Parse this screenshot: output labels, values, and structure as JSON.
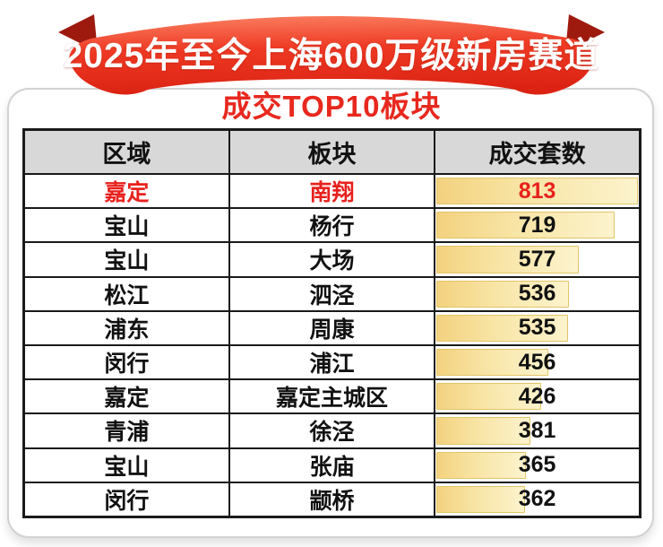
{
  "banner": {
    "title": "2025年至今上海600万级新房赛道",
    "ribbon_gradient_top": "#fb8263",
    "ribbon_gradient_bottom": "#dc2313",
    "fold_color": "#9e1a0e",
    "text_color": "#ffffff"
  },
  "subtitle": {
    "text": "成交TOP10板块",
    "color": "#e8281e"
  },
  "table": {
    "columns": [
      "区域",
      "板块",
      "成交套数"
    ],
    "header_bg": "#d8d8d8",
    "border_color": "#1a1a1a",
    "highlight_text_color": "#e8211d",
    "bar_gradient_left": "#f3d27f",
    "bar_gradient_right": "#fcf3cd",
    "bar_border_color": "#e3c468",
    "rows": [
      {
        "region": "嘉定",
        "plate": "南翔",
        "count": "813",
        "highlight": true
      },
      {
        "region": "宝山",
        "plate": "杨行",
        "count": "719",
        "highlight": false
      },
      {
        "region": "宝山",
        "plate": "大场",
        "count": "577",
        "highlight": false
      },
      {
        "region": "松江",
        "plate": "泗泾",
        "count": "536",
        "highlight": false
      },
      {
        "region": "浦东",
        "plate": "周康",
        "count": "535",
        "highlight": false
      },
      {
        "region": "闵行",
        "plate": "浦江",
        "count": "456",
        "highlight": false
      },
      {
        "region": "嘉定",
        "plate": "嘉定主城区",
        "count": "426",
        "highlight": false
      },
      {
        "region": "青浦",
        "plate": "徐泾",
        "count": "381",
        "highlight": false
      },
      {
        "region": "宝山",
        "plate": "张庙",
        "count": "365",
        "highlight": false
      },
      {
        "region": "闵行",
        "plate": "颛桥",
        "count": "362",
        "highlight": false
      }
    ]
  },
  "chart_data": {
    "type": "table",
    "title": "2025年至今上海600万级新房赛道 成交TOP10板块",
    "columns": [
      "区域",
      "板块",
      "成交套数"
    ],
    "regions": [
      "嘉定",
      "宝山",
      "宝山",
      "松江",
      "浦东",
      "闵行",
      "嘉定",
      "青浦",
      "宝山",
      "闵行"
    ],
    "categories": [
      "南翔",
      "杨行",
      "大场",
      "泗泾",
      "周康",
      "浦江",
      "嘉定主城区",
      "徐泾",
      "张庙",
      "颛桥"
    ],
    "values": [
      813,
      719,
      577,
      536,
      535,
      456,
      426,
      381,
      365,
      362
    ],
    "bar_scale_max": 813,
    "legend": "none",
    "layout": "data bars proportional to 成交套数, max value fills cell"
  }
}
